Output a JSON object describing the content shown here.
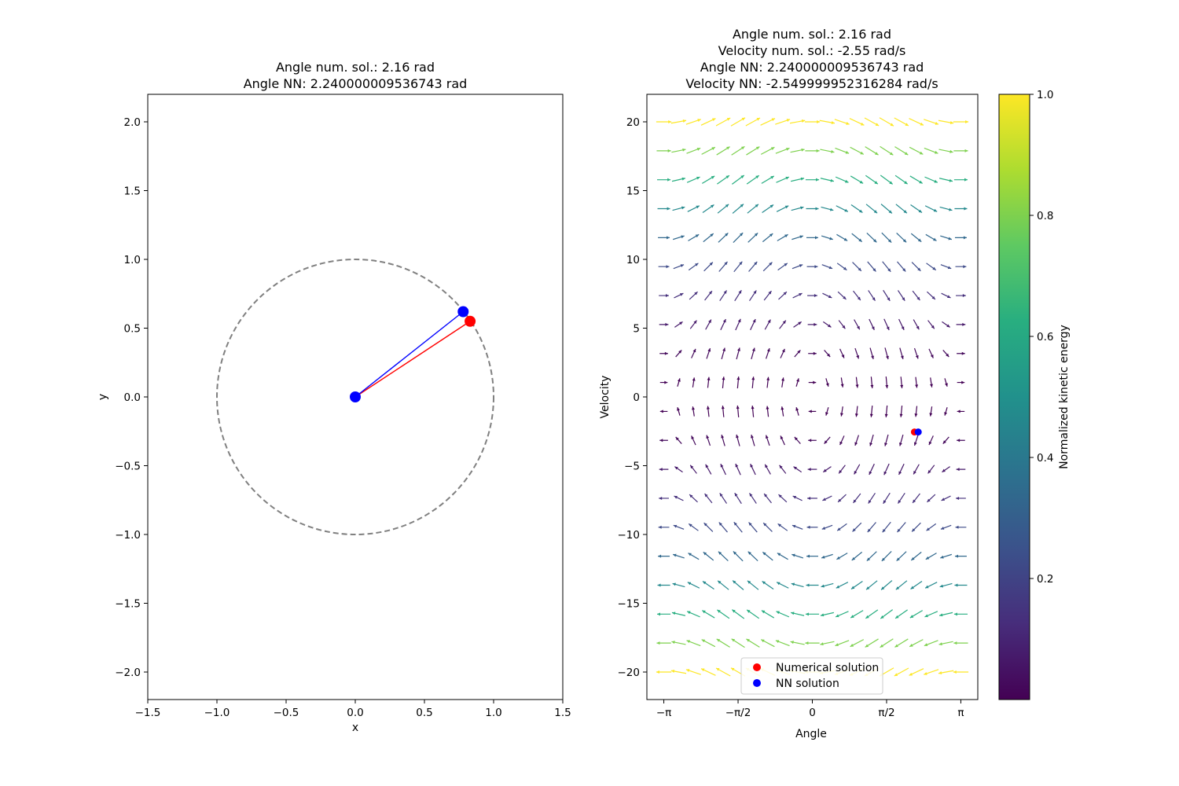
{
  "chart_data": [
    {
      "type": "scatter",
      "title_lines": [
        "Angle num. sol.: 2.16 rad",
        "Angle NN: 2.240000009536743 rad"
      ],
      "xlabel": "x",
      "ylabel": "y",
      "xlim": [
        -1.5,
        1.5
      ],
      "ylim": [
        -2.2,
        2.2
      ],
      "xticks": [
        -1.5,
        -1.0,
        -0.5,
        0.0,
        0.5,
        1.0,
        1.5
      ],
      "xtick_labels": [
        "−1.5",
        "−1.0",
        "−0.5",
        "0.0",
        "0.5",
        "1.0",
        "1.5"
      ],
      "yticks": [
        -2.0,
        -1.5,
        -1.0,
        -0.5,
        0.0,
        0.5,
        1.0,
        1.5,
        2.0
      ],
      "ytick_labels": [
        "−2.0",
        "−1.5",
        "−1.0",
        "−0.5",
        "0.0",
        "0.5",
        "1.0",
        "1.5",
        "2.0"
      ],
      "unit_circle": {
        "center": [
          0,
          0
        ],
        "radius": 1.0,
        "color": "#808080",
        "style": "dashed"
      },
      "pendulums": [
        {
          "pivot": [
            0,
            0
          ],
          "bob": [
            0.83,
            0.55
          ],
          "color": "#ff0000"
        },
        {
          "pivot": [
            0,
            0
          ],
          "bob": [
            0.78,
            0.62
          ],
          "color": "#0000ff"
        }
      ],
      "pivot_marker_color": "#0000ff"
    },
    {
      "type": "quiver",
      "title_lines": [
        "Angle num. sol.: 2.16 rad",
        "Velocity num. sol.: -2.55 rad/s",
        "Angle NN: 2.240000009536743 rad",
        "Velocity NN: -2.549999952316284 rad/s"
      ],
      "xlabel": "Angle",
      "ylabel": "Velocity",
      "xlim": [
        -3.5,
        3.5
      ],
      "ylim": [
        -22,
        22
      ],
      "xticks_pi": [
        -1,
        -0.5,
        0,
        0.5,
        1
      ],
      "xtick_labels": [
        "−π",
        "−π/2",
        "0",
        "π/2",
        "π"
      ],
      "yticks": [
        -20,
        -15,
        -10,
        -5,
        0,
        5,
        10,
        15,
        20
      ],
      "ytick_labels": [
        "−20",
        "−15",
        "−10",
        "−5",
        "0",
        "5",
        "10",
        "15",
        "20"
      ],
      "field": {
        "angle_range": [
          -3.14159,
          3.14159
        ],
        "angle_count": 21,
        "velocity_range": [
          -20,
          20
        ],
        "velocity_count": 20
      },
      "points": [
        {
          "angle": 2.16,
          "velocity": -2.55,
          "color": "#ff0000"
        },
        {
          "angle": 2.24,
          "velocity": -2.55,
          "color": "#0000ff"
        }
      ],
      "legend": {
        "placement": "lower center",
        "entries": [
          {
            "label": "Numerical solution",
            "color": "#ff0000"
          },
          {
            "label": "NN solution",
            "color": "#0000ff"
          }
        ]
      },
      "colorbar": {
        "label": "Normalized kinetic energy",
        "range": [
          0.0,
          1.0
        ],
        "ticks": [
          0.2,
          0.4,
          0.6,
          0.8,
          1.0
        ],
        "tick_labels": [
          "0.2",
          "0.4",
          "0.6",
          "0.8",
          "1.0"
        ],
        "colormap_stops": [
          "#440154",
          "#472d7b",
          "#3b528b",
          "#2c728e",
          "#21918c",
          "#28ae80",
          "#5ec962",
          "#addc30",
          "#fde725"
        ]
      }
    }
  ]
}
